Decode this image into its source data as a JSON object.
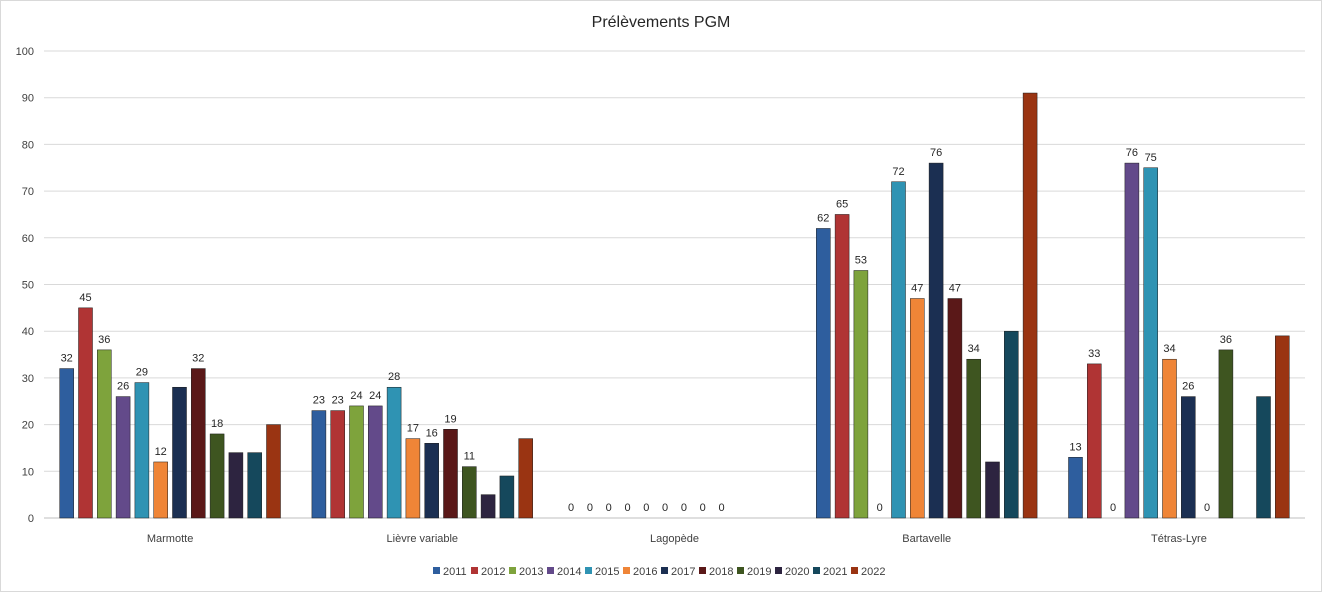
{
  "chart_data": {
    "type": "bar",
    "title": "Prélèvements PGM",
    "xlabel": "",
    "ylabel": "",
    "ylim": [
      0,
      100
    ],
    "yticks": [
      0,
      10,
      20,
      30,
      40,
      50,
      60,
      70,
      80,
      90,
      100
    ],
    "grid": true,
    "legend_position": "bottom",
    "categories": [
      "Marmotte",
      "Lièvre variable",
      "Lagopède",
      "Bartavelle",
      "Tétras-Lyre"
    ],
    "series": [
      {
        "name": "2011",
        "color": "#2e5e9e",
        "values": [
          32,
          23,
          0,
          62,
          13
        ],
        "labels": [
          "32",
          "23",
          "0",
          "62",
          "13"
        ]
      },
      {
        "name": "2012",
        "color": "#b03434",
        "values": [
          45,
          23,
          0,
          65,
          33
        ],
        "labels": [
          "45",
          "23",
          "0",
          "65",
          "33"
        ]
      },
      {
        "name": "2013",
        "color": "#7ea33c",
        "values": [
          36,
          24,
          0,
          53,
          0
        ],
        "labels": [
          "36",
          "24",
          "0",
          "53",
          "0"
        ]
      },
      {
        "name": "2014",
        "color": "#634a8a",
        "values": [
          26,
          24,
          0,
          0,
          76
        ],
        "labels": [
          "26",
          "24",
          "0",
          "0",
          "76"
        ]
      },
      {
        "name": "2015",
        "color": "#2f93b3",
        "values": [
          29,
          28,
          0,
          72,
          75
        ],
        "labels": [
          "29",
          "28",
          "0",
          "72",
          "75"
        ]
      },
      {
        "name": "2016",
        "color": "#ef8537",
        "values": [
          12,
          17,
          0,
          47,
          34
        ],
        "labels": [
          "12",
          "17",
          "0",
          "47",
          "34"
        ]
      },
      {
        "name": "2017",
        "color": "#1b2f52",
        "values": [
          28,
          16,
          0,
          76,
          26
        ],
        "labels": [
          "",
          "16",
          "0",
          "76",
          "26"
        ]
      },
      {
        "name": "2018",
        "color": "#5a1818",
        "values": [
          32,
          19,
          0,
          47,
          0
        ],
        "labels": [
          "32",
          "19",
          "0",
          "47",
          "0"
        ]
      },
      {
        "name": "2019",
        "color": "#3e5520",
        "values": [
          18,
          11,
          0,
          34,
          36
        ],
        "labels": [
          "18",
          "11",
          "0",
          "34",
          "36"
        ]
      },
      {
        "name": "2020",
        "color": "#2d2440",
        "values": [
          14,
          5,
          0,
          12,
          0
        ],
        "labels": [
          "",
          "",
          "",
          "",
          ""
        ]
      },
      {
        "name": "2021",
        "color": "#15485c",
        "values": [
          14,
          9,
          0,
          40,
          26
        ],
        "labels": [
          "",
          "",
          "",
          "",
          ""
        ]
      },
      {
        "name": "2022",
        "color": "#9a3412",
        "values": [
          20,
          17,
          0,
          91,
          39
        ],
        "labels": [
          "",
          "",
          "",
          "",
          ""
        ]
      }
    ]
  }
}
